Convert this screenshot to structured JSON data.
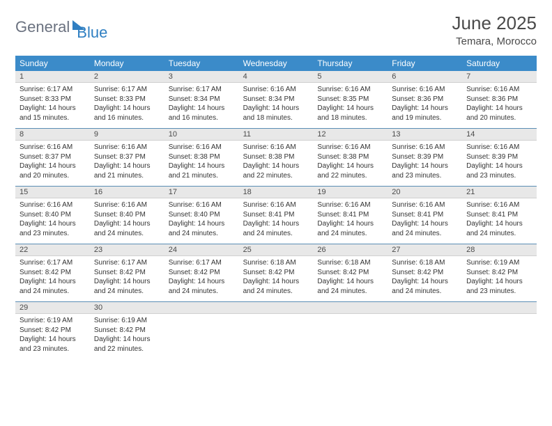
{
  "brand": {
    "part1": "General",
    "part2": "Blue"
  },
  "title": "June 2025",
  "location": "Temara, Morocco",
  "colors": {
    "header_bg": "#3b8bc9",
    "band_bg": "#e8e8e8",
    "rule": "#5a8db5",
    "text": "#333333",
    "brand_gray": "#6b7280",
    "brand_blue": "#2f7fc2"
  },
  "daysOfWeek": [
    "Sunday",
    "Monday",
    "Tuesday",
    "Wednesday",
    "Thursday",
    "Friday",
    "Saturday"
  ],
  "weeks": [
    [
      {
        "n": "1",
        "sunrise": "6:17 AM",
        "sunset": "8:33 PM",
        "daylight": "14 hours and 15 minutes."
      },
      {
        "n": "2",
        "sunrise": "6:17 AM",
        "sunset": "8:33 PM",
        "daylight": "14 hours and 16 minutes."
      },
      {
        "n": "3",
        "sunrise": "6:17 AM",
        "sunset": "8:34 PM",
        "daylight": "14 hours and 16 minutes."
      },
      {
        "n": "4",
        "sunrise": "6:16 AM",
        "sunset": "8:34 PM",
        "daylight": "14 hours and 18 minutes."
      },
      {
        "n": "5",
        "sunrise": "6:16 AM",
        "sunset": "8:35 PM",
        "daylight": "14 hours and 18 minutes."
      },
      {
        "n": "6",
        "sunrise": "6:16 AM",
        "sunset": "8:36 PM",
        "daylight": "14 hours and 19 minutes."
      },
      {
        "n": "7",
        "sunrise": "6:16 AM",
        "sunset": "8:36 PM",
        "daylight": "14 hours and 20 minutes."
      }
    ],
    [
      {
        "n": "8",
        "sunrise": "6:16 AM",
        "sunset": "8:37 PM",
        "daylight": "14 hours and 20 minutes."
      },
      {
        "n": "9",
        "sunrise": "6:16 AM",
        "sunset": "8:37 PM",
        "daylight": "14 hours and 21 minutes."
      },
      {
        "n": "10",
        "sunrise": "6:16 AM",
        "sunset": "8:38 PM",
        "daylight": "14 hours and 21 minutes."
      },
      {
        "n": "11",
        "sunrise": "6:16 AM",
        "sunset": "8:38 PM",
        "daylight": "14 hours and 22 minutes."
      },
      {
        "n": "12",
        "sunrise": "6:16 AM",
        "sunset": "8:38 PM",
        "daylight": "14 hours and 22 minutes."
      },
      {
        "n": "13",
        "sunrise": "6:16 AM",
        "sunset": "8:39 PM",
        "daylight": "14 hours and 23 minutes."
      },
      {
        "n": "14",
        "sunrise": "6:16 AM",
        "sunset": "8:39 PM",
        "daylight": "14 hours and 23 minutes."
      }
    ],
    [
      {
        "n": "15",
        "sunrise": "6:16 AM",
        "sunset": "8:40 PM",
        "daylight": "14 hours and 23 minutes."
      },
      {
        "n": "16",
        "sunrise": "6:16 AM",
        "sunset": "8:40 PM",
        "daylight": "14 hours and 24 minutes."
      },
      {
        "n": "17",
        "sunrise": "6:16 AM",
        "sunset": "8:40 PM",
        "daylight": "14 hours and 24 minutes."
      },
      {
        "n": "18",
        "sunrise": "6:16 AM",
        "sunset": "8:41 PM",
        "daylight": "14 hours and 24 minutes."
      },
      {
        "n": "19",
        "sunrise": "6:16 AM",
        "sunset": "8:41 PM",
        "daylight": "14 hours and 24 minutes."
      },
      {
        "n": "20",
        "sunrise": "6:16 AM",
        "sunset": "8:41 PM",
        "daylight": "14 hours and 24 minutes."
      },
      {
        "n": "21",
        "sunrise": "6:16 AM",
        "sunset": "8:41 PM",
        "daylight": "14 hours and 24 minutes."
      }
    ],
    [
      {
        "n": "22",
        "sunrise": "6:17 AM",
        "sunset": "8:42 PM",
        "daylight": "14 hours and 24 minutes."
      },
      {
        "n": "23",
        "sunrise": "6:17 AM",
        "sunset": "8:42 PM",
        "daylight": "14 hours and 24 minutes."
      },
      {
        "n": "24",
        "sunrise": "6:17 AM",
        "sunset": "8:42 PM",
        "daylight": "14 hours and 24 minutes."
      },
      {
        "n": "25",
        "sunrise": "6:18 AM",
        "sunset": "8:42 PM",
        "daylight": "14 hours and 24 minutes."
      },
      {
        "n": "26",
        "sunrise": "6:18 AM",
        "sunset": "8:42 PM",
        "daylight": "14 hours and 24 minutes."
      },
      {
        "n": "27",
        "sunrise": "6:18 AM",
        "sunset": "8:42 PM",
        "daylight": "14 hours and 24 minutes."
      },
      {
        "n": "28",
        "sunrise": "6:19 AM",
        "sunset": "8:42 PM",
        "daylight": "14 hours and 23 minutes."
      }
    ],
    [
      {
        "n": "29",
        "sunrise": "6:19 AM",
        "sunset": "8:42 PM",
        "daylight": "14 hours and 23 minutes."
      },
      {
        "n": "30",
        "sunrise": "6:19 AM",
        "sunset": "8:42 PM",
        "daylight": "14 hours and 22 minutes."
      },
      null,
      null,
      null,
      null,
      null
    ]
  ],
  "labels": {
    "sunrise_prefix": "Sunrise: ",
    "sunset_prefix": "Sunset: ",
    "daylight_prefix": "Daylight: "
  }
}
